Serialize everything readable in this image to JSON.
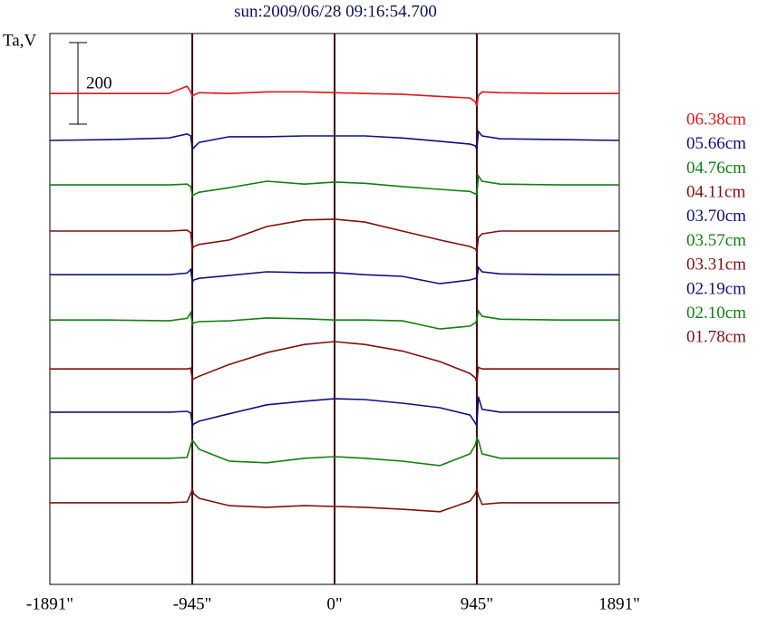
{
  "chart_data": {
    "type": "line",
    "title": "sun:2009/06/28 09:16:54.700",
    "y_label": "Ta,V",
    "scale_bar": 200,
    "x": [
      -1891,
      -1500,
      -1100,
      -980,
      -955,
      -945,
      -935,
      -900,
      -700,
      -450,
      -200,
      0,
      200,
      450,
      700,
      900,
      935,
      945,
      955,
      980,
      1100,
      1500,
      1891
    ],
    "xlim": [
      -1891,
      1891
    ],
    "xticks": [
      {
        "value": -1891,
        "label": "-1891\""
      },
      {
        "value": -945,
        "label": "-945\""
      },
      {
        "value": 0,
        "label": "0\""
      },
      {
        "value": 945,
        "label": "945\""
      },
      {
        "value": 1891,
        "label": "1891\""
      }
    ],
    "ylim": [
      0,
      1350
    ],
    "grid": true,
    "legend": "right",
    "series": [
      {
        "name": "06.38cm",
        "color": "#e8141a",
        "values": [
          1203,
          1203,
          1203,
          1221,
          1207,
          1196,
          1199,
          1205,
          1203,
          1207,
          1207,
          1205,
          1203,
          1201,
          1196,
          1192,
          1183,
          1172,
          1198,
          1207,
          1205,
          1203,
          1203
        ]
      },
      {
        "name": "05.66cm",
        "color": "#101080",
        "values": [
          1088,
          1090,
          1094,
          1104,
          1099,
          1066,
          1070,
          1083,
          1097,
          1097,
          1099,
          1099,
          1099,
          1094,
          1086,
          1079,
          1075,
          1066,
          1110,
          1099,
          1092,
          1090,
          1088
        ]
      },
      {
        "name": "04.76cm",
        "color": "#108010",
        "values": [
          979,
          979,
          979,
          981,
          975,
          952,
          955,
          961,
          972,
          988,
          981,
          986,
          983,
          975,
          968,
          963,
          957,
          955,
          1001,
          988,
          981,
          979,
          979
        ]
      },
      {
        "name": "04.11cm",
        "color": "#801010",
        "values": [
          866,
          866,
          866,
          868,
          862,
          822,
          828,
          833,
          844,
          877,
          893,
          895,
          888,
          866,
          844,
          828,
          822,
          815,
          850,
          859,
          866,
          866,
          866
        ]
      },
      {
        "name": "03.70cm",
        "color": "#101080",
        "values": [
          759,
          759,
          759,
          763,
          772,
          741,
          746,
          750,
          757,
          766,
          764,
          764,
          759,
          755,
          737,
          746,
          750,
          748,
          777,
          766,
          761,
          759,
          759
        ]
      },
      {
        "name": "03.57cm",
        "color": "#108010",
        "values": [
          648,
          648,
          646,
          652,
          666,
          637,
          641,
          644,
          646,
          653,
          651,
          648,
          648,
          646,
          626,
          633,
          641,
          648,
          670,
          657,
          650,
          648,
          648
        ]
      },
      {
        "name": "03.31cm",
        "color": "#801010",
        "values": [
          528,
          528,
          528,
          528,
          530,
          501,
          504,
          510,
          539,
          568,
          588,
          595,
          588,
          572,
          546,
          517,
          506,
          495,
          532,
          528,
          528,
          528,
          528
        ]
      },
      {
        "name": "02.19cm",
        "color": "#101080",
        "values": [
          422,
          422,
          422,
          424,
          420,
          389,
          393,
          400,
          418,
          440,
          449,
          455,
          453,
          444,
          433,
          415,
          395,
          389,
          460,
          429,
          422,
          422,
          422
        ]
      },
      {
        "name": "02.10cm",
        "color": "#108010",
        "values": [
          309,
          309,
          309,
          311,
          342,
          353,
          349,
          331,
          302,
          298,
          309,
          313,
          309,
          302,
          291,
          320,
          342,
          358,
          353,
          320,
          309,
          309,
          309
        ]
      },
      {
        "name": "01.78cm",
        "color": "#801010",
        "values": [
          200,
          200,
          200,
          202,
          222,
          233,
          222,
          211,
          193,
          189,
          193,
          191,
          189,
          184,
          178,
          204,
          222,
          233,
          218,
          196,
          200,
          200,
          200
        ]
      }
    ]
  }
}
